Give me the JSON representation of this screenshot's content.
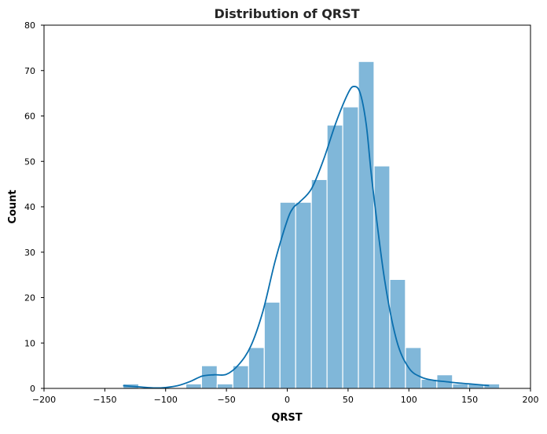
{
  "chart_data": {
    "type": "bar",
    "title": "Distribution of QRST",
    "xlabel": "QRST",
    "ylabel": "Count",
    "xlim": [
      -200,
      200
    ],
    "ylim": [
      0,
      80
    ],
    "xticks": [
      -200,
      -150,
      -100,
      -50,
      0,
      50,
      100,
      150,
      200
    ],
    "xtick_labels": [
      "−200",
      "−150",
      "−100",
      "−50",
      "0",
      "50",
      "100",
      "150",
      "200"
    ],
    "yticks": [
      0,
      10,
      20,
      30,
      40,
      50,
      60,
      70,
      80
    ],
    "ytick_labels": [
      "0",
      "10",
      "20",
      "30",
      "40",
      "50",
      "60",
      "70",
      "80"
    ],
    "grid": false,
    "bar_color": "#80b7d9",
    "kde_color": "#0a6fae",
    "bins": [
      {
        "x0": -135.0,
        "x1": -122.1,
        "count": 1
      },
      {
        "x0": -122.1,
        "x1": -109.2,
        "count": 0
      },
      {
        "x0": -109.2,
        "x1": -96.3,
        "count": 0
      },
      {
        "x0": -96.3,
        "x1": -83.4,
        "count": 0
      },
      {
        "x0": -83.4,
        "x1": -70.5,
        "count": 1
      },
      {
        "x0": -70.5,
        "x1": -57.6,
        "count": 5
      },
      {
        "x0": -57.6,
        "x1": -44.7,
        "count": 1
      },
      {
        "x0": -44.7,
        "x1": -31.8,
        "count": 5
      },
      {
        "x0": -31.8,
        "x1": -18.9,
        "count": 9
      },
      {
        "x0": -18.9,
        "x1": -6.0,
        "count": 19
      },
      {
        "x0": -6.0,
        "x1": 6.9,
        "count": 41
      },
      {
        "x0": 6.9,
        "x1": 19.8,
        "count": 41
      },
      {
        "x0": 19.8,
        "x1": 32.7,
        "count": 46
      },
      {
        "x0": 32.7,
        "x1": 45.6,
        "count": 58
      },
      {
        "x0": 45.6,
        "x1": 58.5,
        "count": 62
      },
      {
        "x0": 58.5,
        "x1": 71.4,
        "count": 72
      },
      {
        "x0": 71.4,
        "x1": 84.3,
        "count": 49
      },
      {
        "x0": 84.3,
        "x1": 97.2,
        "count": 24
      },
      {
        "x0": 97.2,
        "x1": 110.1,
        "count": 9
      },
      {
        "x0": 110.1,
        "x1": 123.0,
        "count": 2
      },
      {
        "x0": 123.0,
        "x1": 135.9,
        "count": 3
      },
      {
        "x0": 135.9,
        "x1": 148.8,
        "count": 1
      },
      {
        "x0": 148.8,
        "x1": 161.7,
        "count": 1
      },
      {
        "x0": 161.7,
        "x1": 174.6,
        "count": 1
      }
    ],
    "kde": {
      "x": [
        -135,
        -120,
        -110,
        -100,
        -90,
        -80,
        -70,
        -60,
        -50,
        -40,
        -30,
        -20,
        -10,
        0,
        5,
        10,
        20,
        30,
        40,
        50,
        55,
        60,
        65,
        70,
        80,
        90,
        100,
        110,
        120,
        130,
        140,
        150,
        166
      ],
      "y": [
        0.6,
        0.3,
        0.1,
        0.2,
        0.6,
        1.5,
        2.7,
        3.0,
        3.1,
        5.2,
        9.3,
        17.0,
        28.0,
        37.0,
        39.8,
        41.0,
        44.0,
        50.5,
        58.5,
        65.0,
        66.5,
        65.0,
        58.0,
        45.0,
        24.0,
        10.5,
        4.5,
        2.5,
        1.8,
        1.5,
        1.2,
        1.0,
        0.6
      ]
    }
  }
}
